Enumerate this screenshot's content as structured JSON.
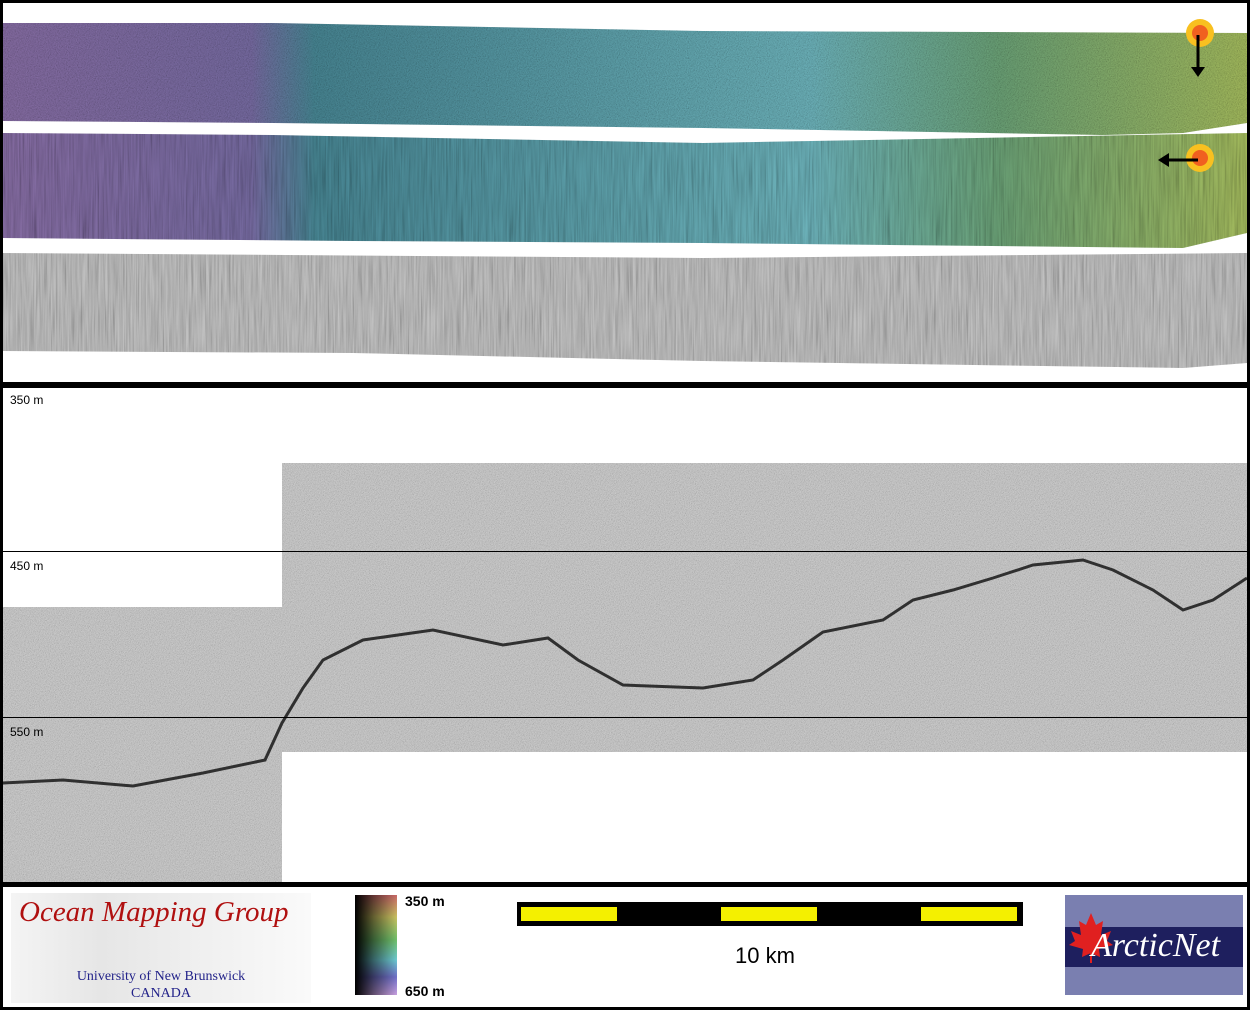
{
  "figure": {
    "map_panel": {
      "strips": [
        "shaded-relief bathymetry",
        "raw-beam bathymetry",
        "backscatter mosaic"
      ],
      "sun_icons": [
        {
          "icon": "sun-icon",
          "arrow": "down"
        },
        {
          "icon": "sun-icon",
          "arrow": "left"
        }
      ]
    },
    "profile_panel": {
      "depth_labels": [
        "350 m",
        "450 m",
        "550 m"
      ]
    },
    "legend": {
      "omg_logo": {
        "title": "Ocean Mapping Group",
        "line1": "University of New Brunswick",
        "line2": "CANADA"
      },
      "colorbar": {
        "top_label": "350 m",
        "bottom_label": "650 m",
        "colors": [
          "#c96868",
          "#c8c060",
          "#6fbf6a",
          "#6cc8d0",
          "#7070c8",
          "#c8a0e0"
        ]
      },
      "scale_bar": {
        "label": "10 km",
        "color": "#f4f000"
      },
      "arcticnet_logo": {
        "text": "ArcticNet"
      }
    }
  }
}
